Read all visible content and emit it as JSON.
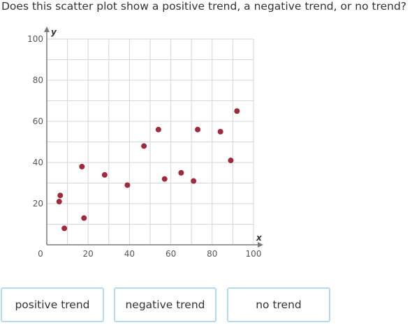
{
  "question": "Does this scatter plot show a positive trend, a negative trend, or no trend?",
  "answers": [
    "positive trend",
    "negative trend",
    "no trend"
  ],
  "chart_data": {
    "type": "scatter",
    "xlabel": "x",
    "ylabel": "y",
    "xlim": [
      0,
      100
    ],
    "ylim": [
      0,
      100
    ],
    "origin_label": "0",
    "x_ticks": [
      20,
      40,
      60,
      80,
      100
    ],
    "y_ticks": [
      20,
      40,
      60,
      80,
      100
    ],
    "grid": true,
    "point_color": "#9e2a3b",
    "points": [
      {
        "x": 6,
        "y": 21
      },
      {
        "x": 6.5,
        "y": 24
      },
      {
        "x": 8.5,
        "y": 8
      },
      {
        "x": 17,
        "y": 38
      },
      {
        "x": 18,
        "y": 13
      },
      {
        "x": 28,
        "y": 34
      },
      {
        "x": 39,
        "y": 29
      },
      {
        "x": 47,
        "y": 48
      },
      {
        "x": 54,
        "y": 56
      },
      {
        "x": 57,
        "y": 32
      },
      {
        "x": 65,
        "y": 35
      },
      {
        "x": 71,
        "y": 31
      },
      {
        "x": 73,
        "y": 56
      },
      {
        "x": 84,
        "y": 55
      },
      {
        "x": 89,
        "y": 41
      },
      {
        "x": 92,
        "y": 65
      }
    ]
  }
}
